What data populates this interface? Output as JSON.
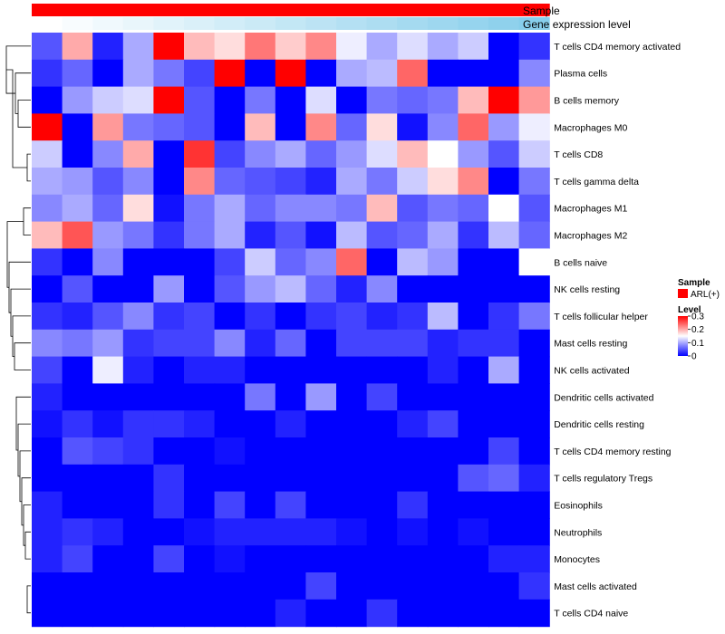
{
  "chart_data": {
    "type": "heatmap",
    "title": "",
    "annotations": [
      {
        "name": "Sample",
        "color": "#FF0000",
        "label": "Sample"
      },
      {
        "name": "Gene expression level",
        "color_low": "#FFFFFF",
        "color_high": "#87CEEB",
        "label": "Gene expression level"
      }
    ],
    "gene_expression_values": [
      0.0,
      0.03,
      0.06,
      0.09,
      0.12,
      0.15,
      0.18,
      0.21,
      0.24,
      0.27,
      0.3,
      0.33,
      0.36,
      0.39,
      0.42,
      0.45,
      0.48
    ],
    "rows": [
      "T cells CD4 memory activated",
      "Plasma cells",
      "B cells memory",
      "Macrophages M0",
      "T cells CD8",
      "T cells gamma delta",
      "Macrophages M1",
      "Macrophages M2",
      "B cells naive",
      "NK cells resting",
      "T cells follicular helper",
      "Mast cells resting",
      "NK cells activated",
      "Dendritic cells activated",
      "Dendritic cells resting",
      "T cells CD4 memory resting",
      "T cells regulatory  Tregs",
      "Eosinophils",
      "Neutrophils",
      "Monocytes",
      "Mast cells activated",
      "T cells CD4 naive"
    ],
    "values": [
      [
        0.05,
        0.2,
        0.02,
        0.1,
        0.3,
        0.19,
        0.17,
        0.23,
        0.18,
        0.22,
        0.14,
        0.1,
        0.13,
        0.1,
        0.12,
        0.0,
        0.03
      ],
      [
        0.03,
        0.06,
        0.0,
        0.1,
        0.07,
        0.04,
        0.3,
        0.0,
        0.3,
        0.0,
        0.1,
        0.11,
        0.24,
        0.0,
        0.0,
        0.0,
        0.08
      ],
      [
        0.0,
        0.09,
        0.12,
        0.13,
        0.3,
        0.05,
        0.0,
        0.07,
        0.0,
        0.13,
        0.0,
        0.07,
        0.06,
        0.07,
        0.19,
        0.3,
        0.21
      ],
      [
        0.3,
        0.0,
        0.21,
        0.07,
        0.06,
        0.05,
        0.0,
        0.19,
        0.0,
        0.22,
        0.06,
        0.17,
        0.01,
        0.08,
        0.24,
        0.09,
        0.14
      ],
      [
        0.12,
        0.0,
        0.08,
        0.2,
        0.0,
        0.27,
        0.04,
        0.08,
        0.1,
        0.06,
        0.09,
        0.13,
        0.19,
        0.15,
        0.09,
        0.05,
        0.12
      ],
      [
        0.1,
        0.09,
        0.05,
        0.08,
        0.0,
        0.22,
        0.06,
        0.05,
        0.04,
        0.02,
        0.1,
        0.07,
        0.12,
        0.17,
        0.22,
        0.0,
        0.07
      ],
      [
        0.08,
        0.1,
        0.06,
        0.17,
        0.01,
        0.07,
        0.1,
        0.06,
        0.08,
        0.08,
        0.07,
        0.19,
        0.05,
        0.07,
        0.06,
        0.15,
        0.05
      ],
      [
        0.19,
        0.25,
        0.09,
        0.07,
        0.03,
        0.07,
        0.1,
        0.02,
        0.05,
        0.01,
        0.11,
        0.05,
        0.06,
        0.1,
        0.03,
        0.11,
        0.06
      ],
      [
        0.03,
        0.0,
        0.08,
        0.0,
        0.0,
        0.0,
        0.04,
        0.12,
        0.06,
        0.08,
        0.24,
        0.0,
        0.11,
        0.09,
        0.0,
        0.0,
        0.15
      ],
      [
        0.0,
        0.05,
        0.0,
        0.0,
        0.09,
        0.0,
        0.05,
        0.09,
        0.11,
        0.06,
        0.02,
        0.08,
        0.0,
        0.0,
        0.0,
        0.0,
        0.0
      ],
      [
        0.03,
        0.02,
        0.05,
        0.08,
        0.03,
        0.04,
        0.0,
        0.03,
        0.0,
        0.03,
        0.04,
        0.02,
        0.03,
        0.11,
        0.0,
        0.03,
        0.07
      ],
      [
        0.08,
        0.07,
        0.09,
        0.03,
        0.04,
        0.04,
        0.08,
        0.02,
        0.06,
        0.0,
        0.04,
        0.04,
        0.04,
        0.02,
        0.03,
        0.03,
        0.0
      ],
      [
        0.04,
        0.0,
        0.14,
        0.02,
        0.0,
        0.02,
        0.02,
        0.0,
        0.0,
        0.0,
        0.0,
        0.0,
        0.0,
        0.02,
        0.0,
        0.1,
        0.0
      ],
      [
        0.02,
        0.0,
        0.0,
        0.0,
        0.0,
        0.0,
        0.0,
        0.07,
        0.0,
        0.09,
        0.0,
        0.04,
        0.0,
        0.0,
        0.0,
        0.0,
        0.0
      ],
      [
        0.01,
        0.03,
        0.01,
        0.03,
        0.03,
        0.02,
        0.0,
        0.0,
        0.02,
        0.0,
        0.0,
        0.0,
        0.02,
        0.04,
        0.0,
        0.0,
        0.0
      ],
      [
        0.0,
        0.05,
        0.04,
        0.03,
        0.0,
        0.0,
        0.01,
        0.0,
        0.0,
        0.0,
        0.0,
        0.0,
        0.0,
        0.0,
        0.0,
        0.04,
        0.0
      ],
      [
        0.0,
        0.0,
        0.0,
        0.0,
        0.03,
        0.0,
        0.0,
        0.0,
        0.0,
        0.0,
        0.0,
        0.0,
        0.0,
        0.0,
        0.05,
        0.06,
        0.02
      ],
      [
        0.02,
        0.0,
        0.0,
        0.0,
        0.03,
        0.0,
        0.04,
        0.0,
        0.04,
        0.0,
        0.0,
        0.0,
        0.03,
        0.0,
        0.0,
        0.0,
        0.0
      ],
      [
        0.02,
        0.03,
        0.02,
        0.0,
        0.0,
        0.01,
        0.02,
        0.02,
        0.02,
        0.02,
        0.01,
        0.0,
        0.01,
        0.0,
        0.01,
        0.0,
        0.0
      ],
      [
        0.02,
        0.04,
        0.0,
        0.0,
        0.04,
        0.0,
        0.01,
        0.0,
        0.0,
        0.0,
        0.0,
        0.0,
        0.0,
        0.0,
        0.0,
        0.02,
        0.02
      ],
      [
        0.0,
        0.0,
        0.0,
        0.0,
        0.0,
        0.0,
        0.0,
        0.0,
        0.0,
        0.04,
        0.0,
        0.0,
        0.0,
        0.0,
        0.0,
        0.0,
        0.03
      ],
      [
        0.0,
        0.0,
        0.0,
        0.0,
        0.0,
        0.0,
        0.0,
        0.0,
        0.02,
        0.0,
        0.0,
        0.03,
        0.0,
        0.0,
        0.0,
        0.0,
        0.0
      ]
    ],
    "legend": {
      "sample_title": "Sample",
      "sample_entry": "ARL(+)",
      "level_title": "Level",
      "level_ticks": [
        "0",
        "0.1",
        "0.2",
        "0.3"
      ],
      "range": [
        0,
        0.3
      ],
      "color_low": "#0000FF",
      "color_mid": "#FFFFFF",
      "color_high": "#FF0000",
      "placement": "right"
    }
  }
}
